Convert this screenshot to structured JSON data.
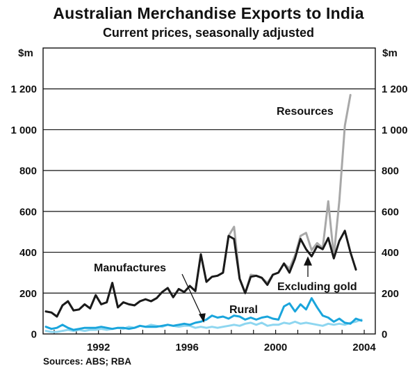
{
  "chart_data": {
    "type": "line",
    "title": "Australian Merchandise Exports to India",
    "subtitle": "Current prices, seasonally adjusted",
    "ylabel_left": "$m",
    "ylabel_right": "$m",
    "ylim": [
      0,
      1400
    ],
    "yticks": [
      0,
      200,
      400,
      600,
      800,
      1000,
      1200
    ],
    "ytick_labels": [
      "0",
      "200",
      "400",
      "600",
      "800",
      "1 000",
      "1 200"
    ],
    "xlim": [
      1989.5,
      2004.5
    ],
    "xticks": [
      1992,
      1996,
      2000,
      2004
    ],
    "xtick_labels": [
      "1992",
      "1996",
      "2000",
      "2004"
    ],
    "grid": true,
    "x": [
      1989.625,
      1989.875,
      1990.125,
      1990.375,
      1990.625,
      1990.875,
      1991.125,
      1991.375,
      1991.625,
      1991.875,
      1992.125,
      1992.375,
      1992.625,
      1992.875,
      1993.125,
      1993.375,
      1993.625,
      1993.875,
      1994.125,
      1994.375,
      1994.625,
      1994.875,
      1995.125,
      1995.375,
      1995.625,
      1995.875,
      1996.125,
      1996.375,
      1996.625,
      1996.875,
      1997.125,
      1997.375,
      1997.625,
      1997.875,
      1998.125,
      1998.375,
      1998.625,
      1998.875,
      1999.125,
      1999.375,
      1999.625,
      1999.875,
      2000.125,
      2000.375,
      2000.625,
      2000.875,
      2001.125,
      2001.375,
      2001.625,
      2001.875,
      2002.125,
      2002.375,
      2002.625,
      2002.875,
      2003.125,
      2003.375,
      2003.625,
      2003.875
    ],
    "series": [
      {
        "name": "Resources",
        "color": "#a8a8a8",
        "values": [
          110,
          105,
          85,
          140,
          160,
          115,
          120,
          145,
          125,
          190,
          145,
          155,
          250,
          130,
          155,
          145,
          140,
          160,
          170,
          160,
          175,
          205,
          225,
          180,
          220,
          205,
          235,
          210,
          390,
          255,
          280,
          285,
          300,
          480,
          525,
          270,
          200,
          290,
          285,
          275,
          250,
          290,
          300,
          345,
          320,
          385,
          480,
          495,
          410,
          445,
          420,
          650,
          380,
          650,
          1020,
          1170,
          null,
          null
        ]
      },
      {
        "name": "Excluding gold",
        "color": "#1a1a1a",
        "values": [
          110,
          105,
          85,
          140,
          160,
          115,
          120,
          145,
          125,
          190,
          145,
          155,
          250,
          130,
          155,
          145,
          140,
          160,
          170,
          160,
          175,
          205,
          225,
          180,
          220,
          205,
          235,
          210,
          390,
          255,
          280,
          285,
          300,
          480,
          465,
          270,
          200,
          280,
          285,
          275,
          240,
          290,
          300,
          345,
          300,
          370,
          465,
          415,
          380,
          430,
          415,
          470,
          370,
          455,
          505,
          400,
          315,
          null
        ]
      },
      {
        "name": "Rural",
        "color": "#1aa5dc",
        "values": [
          35,
          25,
          30,
          45,
          30,
          20,
          25,
          30,
          30,
          30,
          35,
          30,
          25,
          30,
          30,
          25,
          30,
          40,
          35,
          35,
          35,
          40,
          45,
          40,
          45,
          50,
          45,
          55,
          60,
          70,
          90,
          80,
          85,
          75,
          90,
          85,
          70,
          80,
          70,
          80,
          85,
          75,
          70,
          135,
          150,
          110,
          145,
          120,
          175,
          130,
          90,
          80,
          60,
          75,
          55,
          50,
          75,
          65
        ]
      },
      {
        "name": "Manufactures",
        "color": "#8ed6f0",
        "values": [
          15,
          10,
          10,
          15,
          20,
          15,
          20,
          15,
          20,
          20,
          25,
          20,
          25,
          30,
          25,
          35,
          30,
          40,
          35,
          45,
          40,
          35,
          45,
          40,
          35,
          40,
          40,
          30,
          35,
          30,
          35,
          30,
          35,
          40,
          45,
          40,
          50,
          55,
          45,
          55,
          40,
          45,
          45,
          55,
          50,
          60,
          50,
          55,
          50,
          45,
          40,
          50,
          45,
          50,
          45,
          55,
          60,
          70
        ]
      }
    ],
    "annotations": [
      {
        "text": "Resources"
      },
      {
        "text": "Excluding gold"
      },
      {
        "text": "Manufactures"
      },
      {
        "text": "Rural"
      }
    ],
    "source": "Sources: ABS; RBA"
  }
}
